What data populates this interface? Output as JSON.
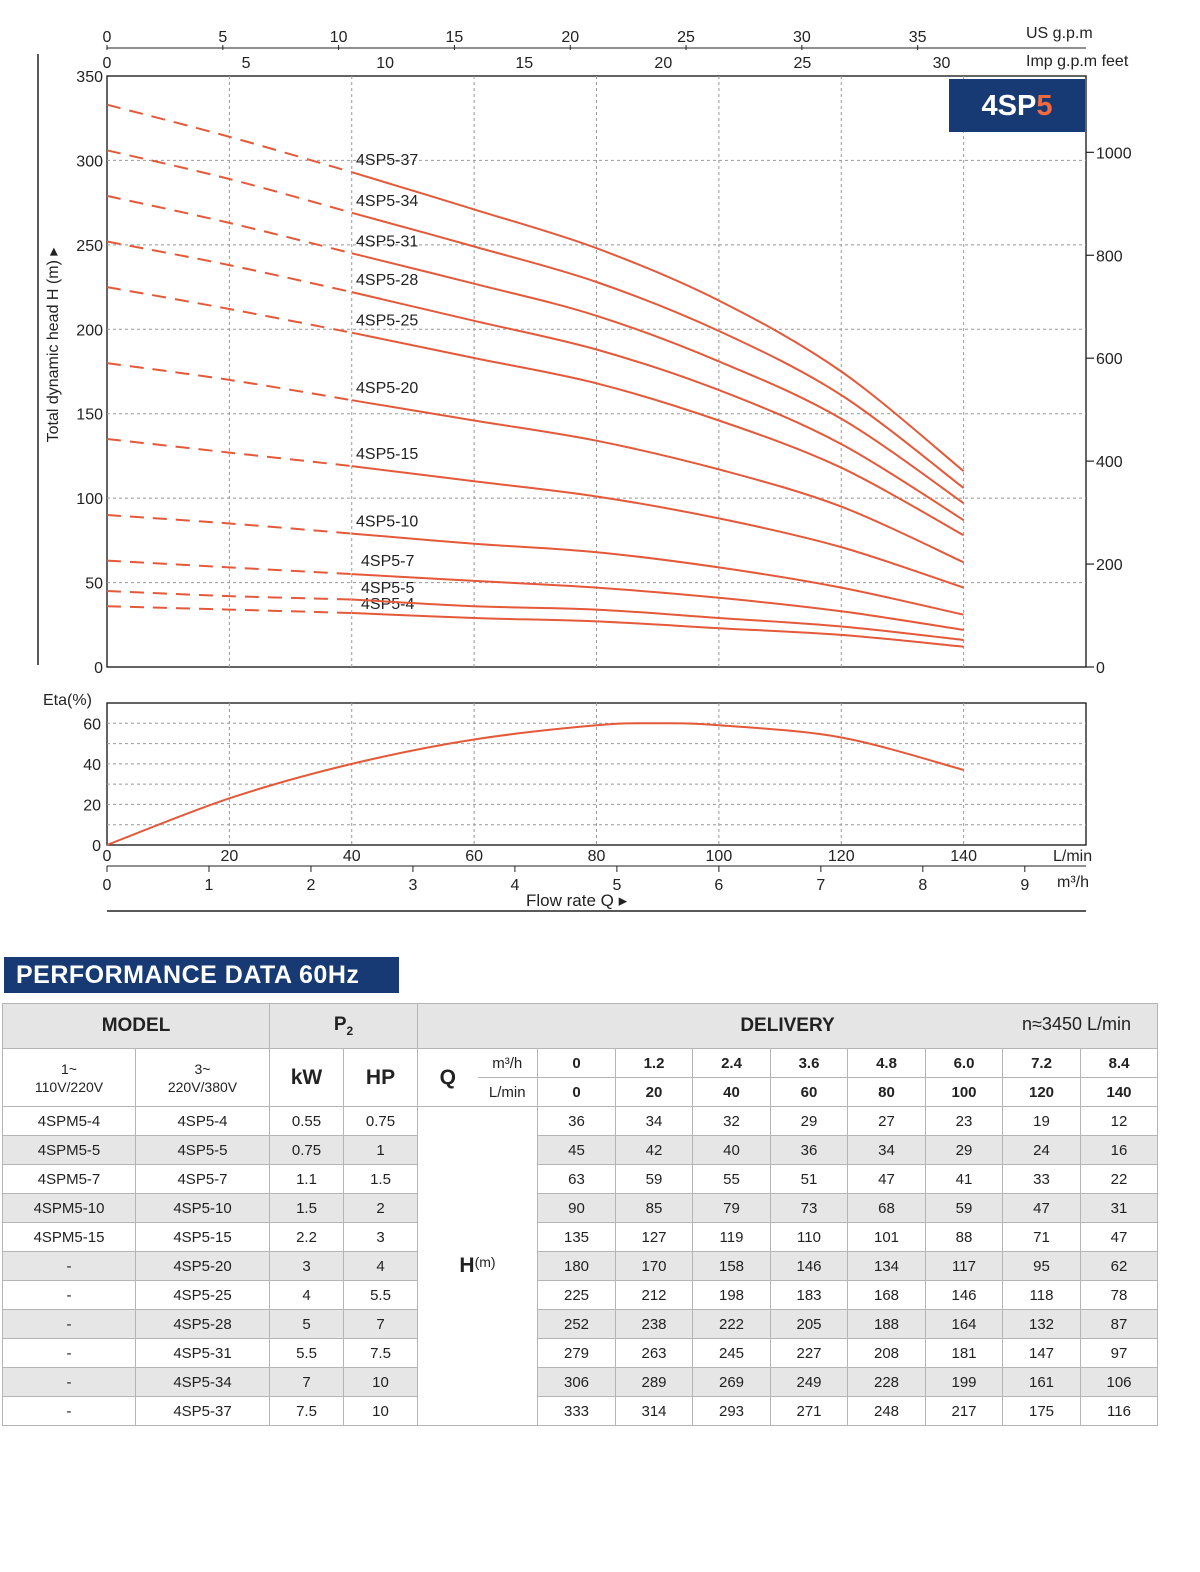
{
  "chart_data": [
    {
      "type": "line",
      "badge": {
        "prefix": "4SP",
        "suffix": "5"
      },
      "ylabel": "Total dynamic head H (m)",
      "xlabel": "Flow rate   Q",
      "ylim": [
        0,
        350
      ],
      "xlim": [
        0,
        160
      ],
      "y_ticks": [
        0,
        50,
        100,
        150,
        200,
        250,
        300,
        350
      ],
      "x_ticks_lmin": [
        0,
        20,
        40,
        60,
        80,
        100,
        120,
        140
      ],
      "x_unit_lmin": "L/min",
      "x_ticks_m3h": [
        0,
        1,
        2,
        3,
        4,
        5,
        6,
        7,
        8,
        9
      ],
      "x_unit_m3h": "m³/h",
      "x_ticks_usgpm": [
        0,
        5,
        10,
        15,
        20,
        25,
        30,
        35
      ],
      "x_unit_usgpm": "US g.p.m",
      "x_ticks_impgpm": [
        0,
        5,
        10,
        15,
        20,
        25,
        30
      ],
      "x_unit_impgpm": "Imp g.p.m feet",
      "y_ticks_feet": [
        0,
        200,
        400,
        600,
        800,
        1000
      ],
      "grid": true,
      "x": [
        0,
        20,
        40,
        60,
        80,
        100,
        120,
        140
      ],
      "dashed_until_x": 40,
      "series": [
        {
          "name": "4SP5-4",
          "values": [
            36,
            34,
            32,
            29,
            27,
            23,
            19,
            12
          ]
        },
        {
          "name": "4SP5-5",
          "values": [
            45,
            42,
            40,
            36,
            34,
            29,
            24,
            16
          ]
        },
        {
          "name": "4SP5-7",
          "values": [
            63,
            59,
            55,
            51,
            47,
            41,
            33,
            22
          ]
        },
        {
          "name": "4SP5-10",
          "values": [
            90,
            85,
            79,
            73,
            68,
            59,
            47,
            31
          ]
        },
        {
          "name": "4SP5-15",
          "values": [
            135,
            127,
            119,
            110,
            101,
            88,
            71,
            47
          ]
        },
        {
          "name": "4SP5-20",
          "values": [
            180,
            170,
            158,
            146,
            134,
            117,
            95,
            62
          ]
        },
        {
          "name": "4SP5-25",
          "values": [
            225,
            212,
            198,
            183,
            168,
            146,
            118,
            78
          ]
        },
        {
          "name": "4SP5-28",
          "values": [
            252,
            238,
            222,
            205,
            188,
            164,
            132,
            87
          ]
        },
        {
          "name": "4SP5-31",
          "values": [
            279,
            263,
            245,
            227,
            208,
            181,
            147,
            97
          ]
        },
        {
          "name": "4SP5-34",
          "values": [
            306,
            289,
            269,
            249,
            228,
            199,
            161,
            106
          ]
        },
        {
          "name": "4SP5-37",
          "values": [
            333,
            314,
            293,
            271,
            248,
            217,
            175,
            116
          ]
        }
      ]
    },
    {
      "type": "line",
      "ylabel": "Eta(%)",
      "ylim": [
        0,
        70
      ],
      "y_ticks": [
        0,
        20,
        40,
        60
      ],
      "x": [
        0,
        20,
        40,
        60,
        80,
        90,
        100,
        120,
        140
      ],
      "series": [
        {
          "values": [
            0,
            23,
            40,
            52,
            59,
            60,
            59,
            53,
            37
          ]
        }
      ]
    }
  ],
  "table": {
    "title": "PERFORMANCE DATA 60Hz",
    "model_header": "MODEL",
    "p2_header": "P",
    "p2_sub": "2",
    "delivery_header": "DELIVERY",
    "speed": "n≈3450 L/min",
    "col_1ph_line1": "1~",
    "col_1ph_line2": "110V/220V",
    "col_3ph_line1": "3~",
    "col_3ph_line2": "220V/380V",
    "kw_header": "kW",
    "hp_header": "HP",
    "q_label": "Q",
    "m3h_label": "m³/h",
    "lmin_label": "L/min",
    "m3h_values": [
      "0",
      "1.2",
      "2.4",
      "3.6",
      "4.8",
      "6.0",
      "7.2",
      "8.4"
    ],
    "lmin_values": [
      "0",
      "20",
      "40",
      "60",
      "80",
      "100",
      "120",
      "140"
    ],
    "h_label": "H",
    "h_unit": "(m)",
    "rows": [
      {
        "m1": "4SPM5-4",
        "m3": "4SP5-4",
        "kw": "0.55",
        "hp": "0.75",
        "h": [
          "36",
          "34",
          "32",
          "29",
          "27",
          "23",
          "19",
          "12"
        ]
      },
      {
        "m1": "4SPM5-5",
        "m3": "4SP5-5",
        "kw": "0.75",
        "hp": "1",
        "h": [
          "45",
          "42",
          "40",
          "36",
          "34",
          "29",
          "24",
          "16"
        ]
      },
      {
        "m1": "4SPM5-7",
        "m3": "4SP5-7",
        "kw": "1.1",
        "hp": "1.5",
        "h": [
          "63",
          "59",
          "55",
          "51",
          "47",
          "41",
          "33",
          "22"
        ]
      },
      {
        "m1": "4SPM5-10",
        "m3": "4SP5-10",
        "kw": "1.5",
        "hp": "2",
        "h": [
          "90",
          "85",
          "79",
          "73",
          "68",
          "59",
          "47",
          "31"
        ]
      },
      {
        "m1": "4SPM5-15",
        "m3": "4SP5-15",
        "kw": "2.2",
        "hp": "3",
        "h": [
          "135",
          "127",
          "119",
          "110",
          "101",
          "88",
          "71",
          "47"
        ]
      },
      {
        "m1": "-",
        "m3": "4SP5-20",
        "kw": "3",
        "hp": "4",
        "h": [
          "180",
          "170",
          "158",
          "146",
          "134",
          "117",
          "95",
          "62"
        ]
      },
      {
        "m1": "-",
        "m3": "4SP5-25",
        "kw": "4",
        "hp": "5.5",
        "h": [
          "225",
          "212",
          "198",
          "183",
          "168",
          "146",
          "118",
          "78"
        ]
      },
      {
        "m1": "-",
        "m3": "4SP5-28",
        "kw": "5",
        "hp": "7",
        "h": [
          "252",
          "238",
          "222",
          "205",
          "188",
          "164",
          "132",
          "87"
        ]
      },
      {
        "m1": "-",
        "m3": "4SP5-31",
        "kw": "5.5",
        "hp": "7.5",
        "h": [
          "279",
          "263",
          "245",
          "227",
          "208",
          "181",
          "147",
          "97"
        ]
      },
      {
        "m1": "-",
        "m3": "4SP5-34",
        "kw": "7",
        "hp": "10",
        "h": [
          "306",
          "289",
          "269",
          "249",
          "228",
          "199",
          "161",
          "106"
        ]
      },
      {
        "m1": "-",
        "m3": "4SP5-37",
        "kw": "7.5",
        "hp": "10",
        "h": [
          "333",
          "314",
          "293",
          "271",
          "248",
          "217",
          "175",
          "116"
        ]
      }
    ],
    "colors": {
      "curve": "#e4593a",
      "navy": "#173a75",
      "accent": "#f26a3d"
    }
  }
}
